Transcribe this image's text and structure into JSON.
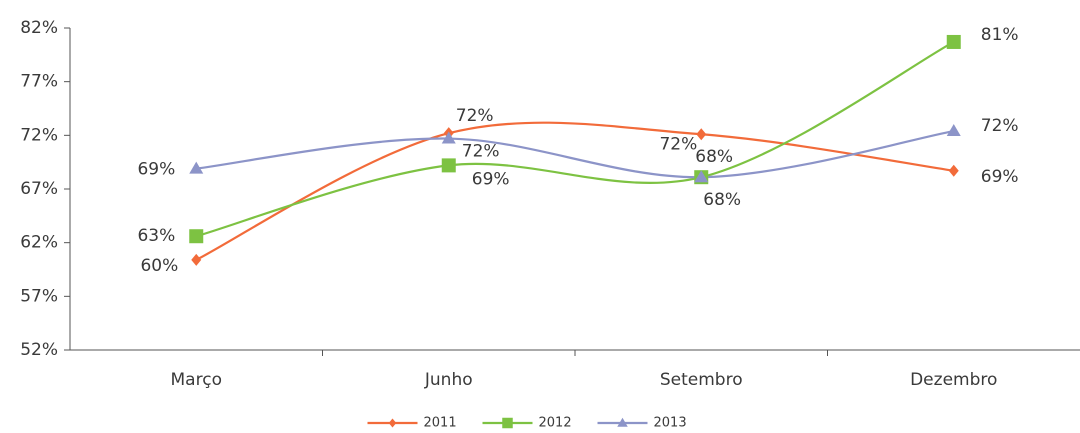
{
  "chart_data": {
    "type": "line",
    "categories": [
      "Março",
      "Junho",
      "Setembro",
      "Dezembro"
    ],
    "series": [
      {
        "name": "2011",
        "color": "#f26b3a",
        "marker": "diamond",
        "values": [
          60.4,
          72.2,
          72.1,
          68.7
        ],
        "value_labels": [
          "60%",
          "72%",
          "72%",
          "69%"
        ]
      },
      {
        "name": "2012",
        "color": "#7dc242",
        "marker": "square",
        "values": [
          62.6,
          69.2,
          68.1,
          80.7
        ],
        "value_labels": [
          "63%",
          "69%",
          "68%",
          "81%"
        ]
      },
      {
        "name": "2013",
        "color": "#8c94c8",
        "marker": "triangle",
        "values": [
          68.9,
          71.7,
          68.1,
          72.4
        ],
        "value_labels": [
          "69%",
          "72%",
          "68%",
          "72%"
        ]
      }
    ],
    "ylim": [
      52,
      82
    ],
    "yticks": [
      {
        "value": 52,
        "label": "52%"
      },
      {
        "value": 57,
        "label": "57%"
      },
      {
        "value": 62,
        "label": "62%"
      },
      {
        "value": 67,
        "label": "67%"
      },
      {
        "value": 72,
        "label": "72%"
      },
      {
        "value": 77,
        "label": "77%"
      },
      {
        "value": 82,
        "label": "82%"
      }
    ],
    "grid": false,
    "smooth": true,
    "legend": "bottom"
  }
}
